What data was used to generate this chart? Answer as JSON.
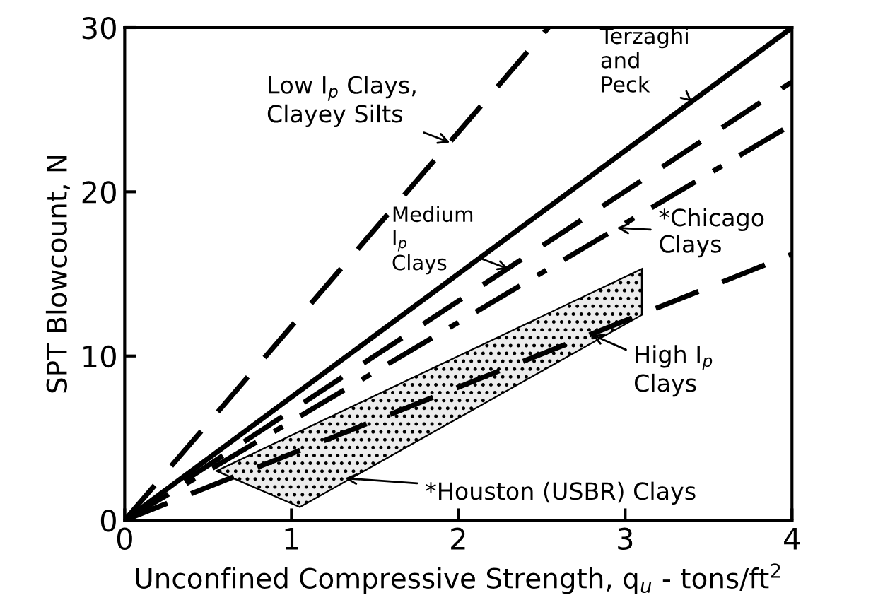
{
  "chart_data": {
    "type": "line",
    "xlabel": "Unconfined Compressive Strength, q$_{u}$ - tons/ft$^{2}$",
    "ylabel": "SPT Blowcount, N",
    "xlim": [
      0,
      4
    ],
    "ylim": [
      0,
      30
    ],
    "xticks": [
      0,
      1,
      2,
      3,
      4
    ],
    "yticks": [
      0,
      10,
      20,
      30
    ],
    "grid": false,
    "marker": "none",
    "series": [
      {
        "color": "#000000",
        "line_style": "dashed",
        "x": [
          0,
          2.54
        ],
        "values": [
          0,
          30
        ]
      },
      {
        "color": "#000000",
        "line_style": "solid",
        "x": [
          0,
          4
        ],
        "values": [
          0,
          30
        ]
      },
      {
        "color": "#000000",
        "line_style": "dashed",
        "x": [
          0,
          4
        ],
        "values": [
          0,
          26.7
        ]
      },
      {
        "color": "#000000",
        "line_style": "dashdot",
        "x": [
          0,
          4
        ],
        "values": [
          0,
          24.1
        ]
      },
      {
        "color": "#000000",
        "line_style": "dashed",
        "x": [
          0,
          4
        ],
        "values": [
          0,
          16.2
        ]
      },
      {
        "type": "area",
        "color": "#000000",
        "x": [
          0.55,
          1.05,
          3.1,
          3.1,
          0.55
        ],
        "values": [
          3,
          0.8,
          12.5,
          15.3,
          3
        ]
      }
    ],
    "annotations": [
      {
        "text": "Low I$_{p}$ Clays,\nClayey Silts",
        "x": 1.95,
        "y": 23
      },
      {
        "text": "Terzaghi\nand\nPeck",
        "x": 3.4,
        "y": 25.5
      },
      {
        "text": "Medium\nI$_{p}$\nClays",
        "x": 2.3,
        "y": 15.3
      },
      {
        "text": "*Chicago\nClays",
        "x": 2.95,
        "y": 17.8
      },
      {
        "text": "High I$_{p}$\nClays",
        "x": 2.8,
        "y": 11.3
      },
      "*Houston (USBR) Clays"
    ]
  }
}
